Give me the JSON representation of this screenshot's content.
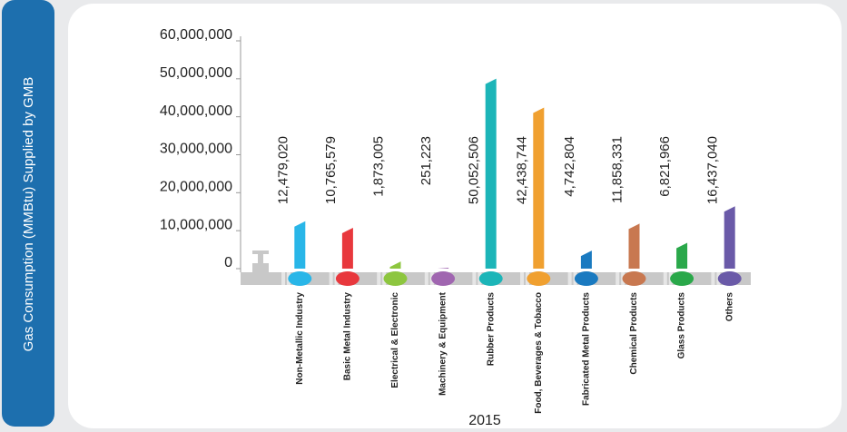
{
  "chart_data": {
    "type": "bar",
    "ylabel": "Gas Consumption (MMBtu) Supplied by GMB",
    "xlabel": "2015",
    "categories": [
      "Non-Metallic Industry",
      "Basic Metal Industry",
      "Electrical & Electronic",
      "Machinery & Equipment",
      "Rubber Products",
      "Food, Beverages & Tobacco",
      "Fabricated Metal Products",
      "Chemical Products",
      "Glass Products",
      "Others"
    ],
    "values": [
      12479020,
      10765579,
      1873005,
      251223,
      50052506,
      42438744,
      4742804,
      11858331,
      6821966,
      16437040
    ],
    "value_labels": [
      "12,479,020",
      "10,765,579",
      "1,873,005",
      "251,223",
      "50,052,506",
      "42,438,744",
      "4,742,804",
      "11,858,331",
      "6,821,966",
      "16,437,040"
    ],
    "colors": [
      "#29b6e8",
      "#e8383d",
      "#8dc63f",
      "#a066b0",
      "#1cb5b8",
      "#f0a030",
      "#1a7ac0",
      "#c87850",
      "#2aa84a",
      "#6a5aa8"
    ],
    "ylim": [
      0,
      60000000
    ],
    "yticks": [
      0,
      {
        "value": 10000000,
        "label": "10,000,000"
      },
      {
        "value": 20000000,
        "label": "20,000,000"
      },
      {
        "value": 30000000,
        "label": "30,000,000"
      },
      {
        "value": 40000000,
        "label": "40,000,000"
      },
      {
        "value": 50000000,
        "label": "50,000,000"
      },
      {
        "value": 60000000,
        "label": "60,000,000"
      }
    ]
  }
}
